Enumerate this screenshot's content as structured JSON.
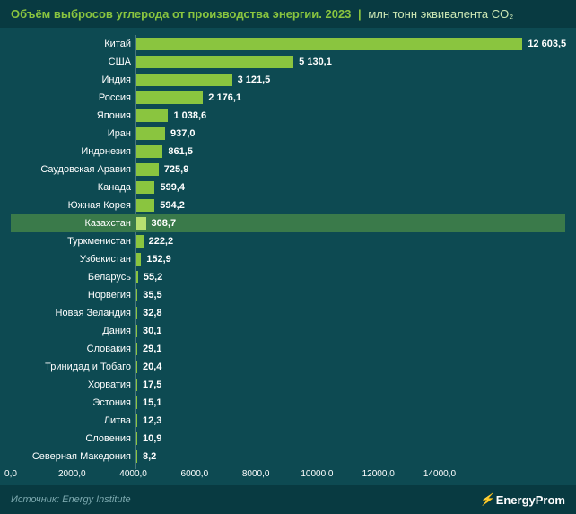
{
  "chart": {
    "type": "bar",
    "title": "Объём выбросов углерода от производства энергии. 2023",
    "subtitle": "млн тонн эквивалента CO₂",
    "separator": "|",
    "background_color": "#0d4a52",
    "header_background": "#083a41",
    "header_text_color": "#8ac53f",
    "header_subtitle_color": "#cde8b5",
    "bar_color": "#8ac53f",
    "highlight_bar_color": "#b8e070",
    "highlight_row_background": "#3a7a4a",
    "label_color": "#ffffff",
    "value_color": "#ffffff",
    "axis_color": "#ffffff",
    "footer_background": "#083a41",
    "source_color": "#7ba8ae",
    "x_max": 14000,
    "x_tick_step": 2000,
    "x_ticks": [
      "0,0",
      "2000,0",
      "4000,0",
      "6000,0",
      "8000,0",
      "10000,0",
      "12000,0",
      "14000,0"
    ],
    "highlighted_index": 10,
    "data": [
      {
        "label": "Китай",
        "value": 12603.5,
        "display": "12 603,5"
      },
      {
        "label": "США",
        "value": 5130.1,
        "display": "5 130,1"
      },
      {
        "label": "Индия",
        "value": 3121.5,
        "display": "3 121,5"
      },
      {
        "label": "Россия",
        "value": 2176.1,
        "display": "2 176,1"
      },
      {
        "label": "Япония",
        "value": 1038.6,
        "display": "1 038,6"
      },
      {
        "label": "Иран",
        "value": 937.0,
        "display": "937,0"
      },
      {
        "label": "Индонезия",
        "value": 861.5,
        "display": "861,5"
      },
      {
        "label": "Саудовская Аравия",
        "value": 725.9,
        "display": "725,9"
      },
      {
        "label": "Канада",
        "value": 599.4,
        "display": "599,4"
      },
      {
        "label": "Южная Корея",
        "value": 594.2,
        "display": "594,2"
      },
      {
        "label": "Казахстан",
        "value": 308.7,
        "display": "308,7"
      },
      {
        "label": "Туркменистан",
        "value": 222.2,
        "display": "222,2"
      },
      {
        "label": "Узбекистан",
        "value": 152.9,
        "display": "152,9"
      },
      {
        "label": "Беларусь",
        "value": 55.2,
        "display": "55,2"
      },
      {
        "label": "Норвегия",
        "value": 35.5,
        "display": "35,5"
      },
      {
        "label": "Новая Зеландия",
        "value": 32.8,
        "display": "32,8"
      },
      {
        "label": "Дания",
        "value": 30.1,
        "display": "30,1"
      },
      {
        "label": "Словакия",
        "value": 29.1,
        "display": "29,1"
      },
      {
        "label": "Тринидад и Тобаго",
        "value": 20.4,
        "display": "20,4"
      },
      {
        "label": "Хорватия",
        "value": 17.5,
        "display": "17,5"
      },
      {
        "label": "Эстония",
        "value": 15.1,
        "display": "15,1"
      },
      {
        "label": "Литва",
        "value": 12.3,
        "display": "12,3"
      },
      {
        "label": "Словения",
        "value": 10.9,
        "display": "10,9"
      },
      {
        "label": "Северная Македония",
        "value": 8.2,
        "display": "8,2"
      }
    ]
  },
  "footer": {
    "source_prefix": "Источник:",
    "source_name": "Energy Institute",
    "logo_icon": "⚡",
    "logo_text": "EnergyProm"
  }
}
